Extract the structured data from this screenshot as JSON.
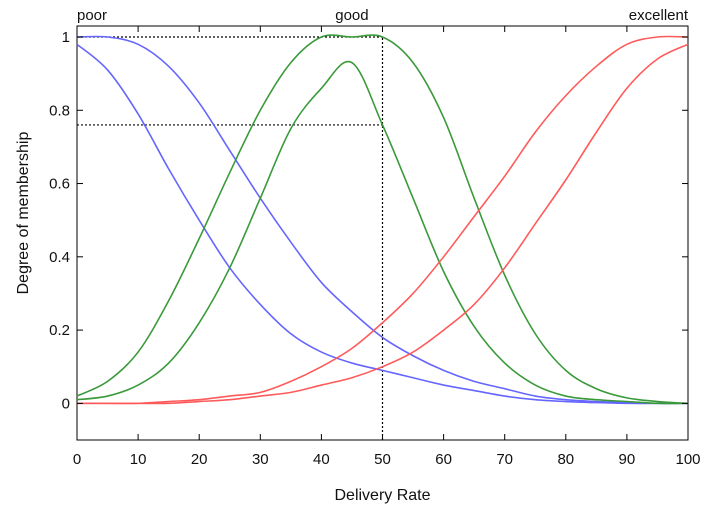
{
  "chart_data": {
    "type": "line",
    "title": "",
    "xlabel": "Delivery Rate",
    "ylabel": "Degree of membership",
    "xlim": [
      0,
      100
    ],
    "ylim": [
      -0.1,
      1.03
    ],
    "xticks": [
      "0",
      "10",
      "20",
      "30",
      "40",
      "50",
      "60",
      "70",
      "80",
      "90",
      "100"
    ],
    "yticks": [
      "0",
      "0.2",
      "0.4",
      "0.6",
      "0.8",
      "1"
    ],
    "grid": false,
    "colors": {
      "poor": "#6666ff",
      "good": "#3a9a3a",
      "excellent": "#ff5a5a",
      "axis": "#000000"
    },
    "term_labels": [
      {
        "text": "poor",
        "x": 0
      },
      {
        "text": "good",
        "x": 45
      },
      {
        "text": "excellent",
        "x": 100
      }
    ],
    "series": [
      {
        "term": "poor",
        "color": "#6666ff",
        "x": [
          0,
          5,
          10,
          15,
          20,
          25,
          30,
          35,
          40,
          45,
          50,
          55,
          60,
          65,
          70,
          75,
          80,
          85,
          90,
          95,
          100
        ],
        "y": [
          1.0,
          1.0,
          0.98,
          0.92,
          0.82,
          0.69,
          0.56,
          0.44,
          0.33,
          0.25,
          0.18,
          0.13,
          0.09,
          0.06,
          0.04,
          0.02,
          0.01,
          0.005,
          0.002,
          0.0,
          0.0
        ]
      },
      {
        "term": "poor",
        "color": "#6666ff",
        "x": [
          0,
          5,
          10,
          15,
          20,
          25,
          30,
          35,
          40,
          45,
          50,
          55,
          60,
          65,
          70,
          75,
          80,
          85,
          90,
          95,
          100
        ],
        "y": [
          0.98,
          0.91,
          0.79,
          0.64,
          0.5,
          0.37,
          0.27,
          0.19,
          0.14,
          0.11,
          0.09,
          0.07,
          0.05,
          0.035,
          0.02,
          0.01,
          0.005,
          0.002,
          0.0,
          0.0,
          0.0
        ]
      },
      {
        "term": "good",
        "color": "#3a9a3a",
        "x": [
          0,
          5,
          10,
          15,
          20,
          25,
          30,
          35,
          40,
          45,
          50,
          55,
          60,
          65,
          70,
          75,
          80,
          85,
          90,
          95,
          100
        ],
        "y": [
          0.02,
          0.06,
          0.14,
          0.28,
          0.45,
          0.63,
          0.8,
          0.93,
          1.0,
          1.0,
          1.0,
          0.93,
          0.78,
          0.56,
          0.35,
          0.19,
          0.09,
          0.04,
          0.015,
          0.005,
          0.0
        ]
      },
      {
        "term": "good",
        "color": "#3a9a3a",
        "x": [
          0,
          5,
          10,
          15,
          20,
          25,
          30,
          35,
          40,
          45,
          50,
          55,
          60,
          65,
          70,
          75,
          80,
          85,
          90,
          95,
          100
        ],
        "y": [
          0.01,
          0.02,
          0.05,
          0.11,
          0.22,
          0.37,
          0.56,
          0.75,
          0.86,
          0.93,
          0.76,
          0.56,
          0.36,
          0.21,
          0.11,
          0.05,
          0.02,
          0.01,
          0.005,
          0.0,
          0.0
        ]
      },
      {
        "term": "excellent",
        "color": "#ff5a5a",
        "x": [
          0,
          5,
          10,
          15,
          20,
          25,
          30,
          35,
          40,
          45,
          50,
          55,
          60,
          65,
          70,
          75,
          80,
          85,
          90,
          95,
          100
        ],
        "y": [
          0.0,
          0.0,
          0.0,
          0.005,
          0.01,
          0.02,
          0.03,
          0.06,
          0.1,
          0.15,
          0.22,
          0.3,
          0.4,
          0.51,
          0.62,
          0.74,
          0.84,
          0.92,
          0.98,
          1.0,
          1.0
        ]
      },
      {
        "term": "excellent",
        "color": "#ff5a5a",
        "x": [
          0,
          5,
          10,
          15,
          20,
          25,
          30,
          35,
          40,
          45,
          50,
          55,
          60,
          65,
          70,
          75,
          80,
          85,
          90,
          95,
          100
        ],
        "y": [
          0.0,
          0.0,
          0.0,
          0.0,
          0.005,
          0.01,
          0.02,
          0.03,
          0.05,
          0.07,
          0.1,
          0.14,
          0.2,
          0.27,
          0.37,
          0.49,
          0.61,
          0.74,
          0.86,
          0.94,
          0.98
        ]
      }
    ],
    "annotations": [
      {
        "kind": "vertical-dotted",
        "x": 50,
        "y_from": -0.1,
        "y_to": 1.0
      },
      {
        "kind": "horizontal-dotted",
        "y": 1.0,
        "x_from": 0,
        "x_to": 50
      },
      {
        "kind": "horizontal-dotted",
        "y": 0.76,
        "x_from": 0,
        "x_to": 50
      }
    ]
  }
}
